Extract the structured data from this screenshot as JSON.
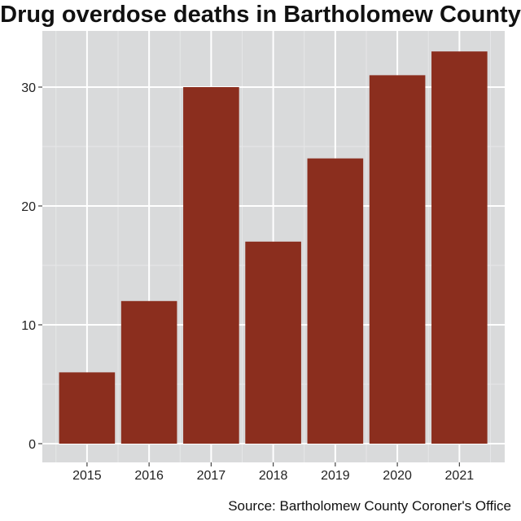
{
  "chart_data": {
    "type": "bar",
    "title": "Drug overdose deaths in Bartholomew County",
    "source": "Source: Bartholomew County Coroner's Office",
    "categories": [
      "2015",
      "2016",
      "2017",
      "2018",
      "2019",
      "2020",
      "2021"
    ],
    "values": [
      6,
      12,
      30,
      17,
      24,
      31,
      33
    ],
    "xlabel": "",
    "ylabel": "",
    "ylim": [
      0,
      35
    ],
    "yticks": [
      0,
      10,
      20,
      30
    ],
    "grid": true,
    "legend": "none",
    "colors": {
      "bar": "#8b2e1e",
      "panel": "#d9dadb",
      "grid_major": "#ffffff",
      "grid_minor": "#e6e7e8"
    }
  }
}
